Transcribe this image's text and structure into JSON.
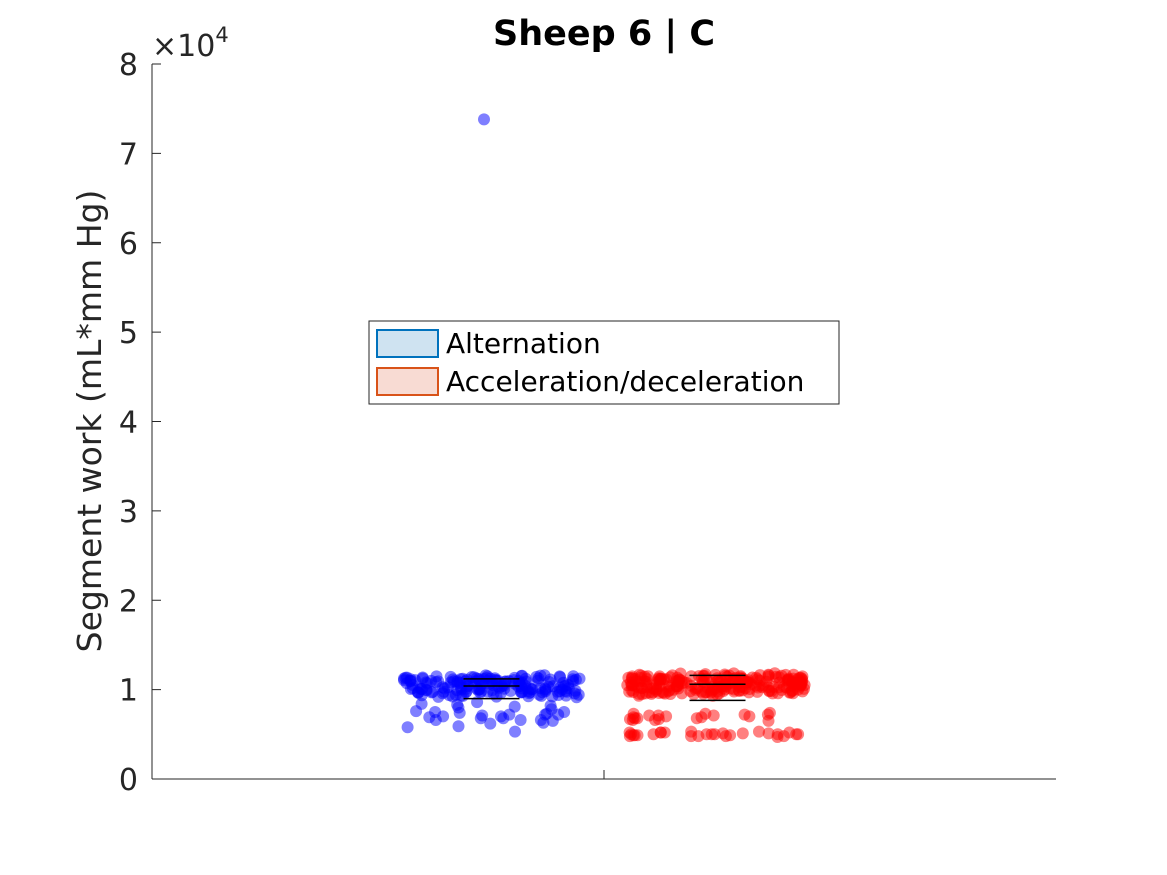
{
  "chart_data": {
    "type": "scatter",
    "title": "Sheep 6 | C",
    "xlabel": "",
    "ylabel": "Segment work (mL*mm Hg)",
    "ylim": [
      0,
      80000
    ],
    "yticks": [
      0,
      1,
      2,
      3,
      4,
      5,
      6,
      7,
      8
    ],
    "y_exponent_label": "×10",
    "y_exponent_power": "4",
    "grid": false,
    "legend_position": "center",
    "series": [
      {
        "name": "Alternation",
        "color": "#0000ff",
        "legend_face": "#cfe3f1",
        "legend_edge": "#0072bd",
        "median": 10400,
        "q1": 9000,
        "q3": 11200,
        "outliers": [
          73800
        ],
        "low_points": [
          8600,
          7200,
          7600,
          6600,
          7100,
          6800,
          8300,
          6300,
          7500,
          5900,
          7200,
          6600,
          8100,
          6200,
          7000,
          5800,
          7400,
          8000,
          6500,
          7000,
          7500,
          6800,
          7200,
          8200,
          5300,
          7800,
          6900,
          7300,
          8400,
          6600
        ]
      },
      {
        "name": "Acceleration/deceleration",
        "color": "#ff0000",
        "legend_face": "#f8dbd3",
        "legend_edge": "#d95319",
        "median": 10600,
        "q1": 8800,
        "q3": 11600,
        "outliers": [],
        "low_points": [
          5000,
          4800,
          7200,
          5200,
          6800,
          4900,
          7300,
          5100,
          6600,
          4800,
          7100,
          5000,
          6900,
          5300,
          4700,
          7000,
          5200,
          6500,
          4900,
          7400,
          5000,
          6700,
          5100,
          4800,
          7200,
          5300,
          6800,
          5000,
          4900,
          7100,
          5200,
          6600,
          5000,
          4800,
          7000,
          5100,
          6900,
          5000,
          7300,
          4900,
          5200,
          6700,
          5000,
          4800,
          7100,
          5200,
          6800,
          5000
        ]
      }
    ]
  }
}
